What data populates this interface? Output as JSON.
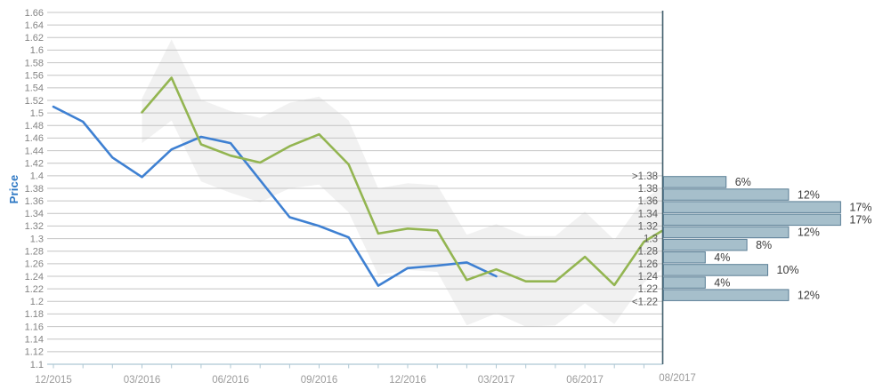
{
  "chart_data": {
    "type": "line",
    "title": "",
    "ylabel": "Price",
    "grid": true,
    "y_axis": {
      "min": 1.1,
      "max": 1.66,
      "step": 0.02
    },
    "x_axis": {
      "unit": "month",
      "tick_labels": [
        {
          "label": "12/2015",
          "month_index": 0
        },
        {
          "label": "03/2016",
          "month_index": 3
        },
        {
          "label": "06/2016",
          "month_index": 6
        },
        {
          "label": "09/2016",
          "month_index": 9
        },
        {
          "label": "12/2016",
          "month_index": 12
        },
        {
          "label": "03/2017",
          "month_index": 15
        },
        {
          "label": "06/2017",
          "month_index": 18
        }
      ],
      "forecast_end_label": "08/2017",
      "minor_tick_count": 21
    },
    "series": [
      {
        "name": "historical-price",
        "color": "#3e80d2",
        "points": [
          [
            0,
            1.51
          ],
          [
            1,
            1.486
          ],
          [
            2,
            1.429
          ],
          [
            3,
            1.398
          ],
          [
            4,
            1.442
          ],
          [
            5,
            1.462
          ],
          [
            6,
            1.452
          ],
          [
            7,
            1.393
          ],
          [
            8,
            1.334
          ],
          [
            9,
            1.32
          ],
          [
            10,
            1.302
          ],
          [
            11,
            1.225
          ],
          [
            12,
            1.253
          ],
          [
            13,
            1.257
          ],
          [
            14,
            1.262
          ],
          [
            15,
            1.24
          ]
        ]
      },
      {
        "name": "forecast-price",
        "color": "#93b551",
        "points": [
          [
            3,
            1.501
          ],
          [
            4,
            1.556
          ],
          [
            5,
            1.45
          ],
          [
            6,
            1.432
          ],
          [
            7,
            1.421
          ],
          [
            8,
            1.447
          ],
          [
            9,
            1.466
          ],
          [
            10,
            1.418
          ],
          [
            11,
            1.308
          ],
          [
            12,
            1.316
          ],
          [
            13,
            1.313
          ],
          [
            14,
            1.234
          ],
          [
            15,
            1.251
          ],
          [
            16,
            1.232
          ],
          [
            17,
            1.232
          ],
          [
            18,
            1.271
          ],
          [
            19,
            1.226
          ],
          [
            20,
            1.295
          ],
          [
            20.6,
            1.312
          ]
        ]
      }
    ],
    "confidence_band": {
      "color": "#f1f1f1",
      "points": [
        [
          3,
          1.523,
          1.452
        ],
        [
          4,
          1.617,
          1.488
        ],
        [
          5,
          1.521,
          1.391
        ],
        [
          6,
          1.503,
          1.373
        ],
        [
          7,
          1.492,
          1.358
        ],
        [
          8,
          1.516,
          1.38
        ],
        [
          9,
          1.526,
          1.386
        ],
        [
          10,
          1.488,
          1.342
        ],
        [
          11,
          1.38,
          1.242
        ],
        [
          12,
          1.388,
          1.25
        ],
        [
          13,
          1.385,
          1.247
        ],
        [
          14,
          1.306,
          1.162
        ],
        [
          15,
          1.323,
          1.181
        ],
        [
          16,
          1.304,
          1.16
        ],
        [
          17,
          1.304,
          1.162
        ],
        [
          18,
          1.343,
          1.197
        ],
        [
          19,
          1.298,
          1.164
        ],
        [
          20,
          1.363,
          1.23
        ],
        [
          20.6,
          1.381,
          1.251
        ]
      ]
    },
    "histogram": {
      "orientation": "horizontal",
      "bin_labels": [
        ">1.38",
        "1.38",
        "1.36",
        "1.34",
        "1.32",
        "1.3",
        "1.28",
        "1.26",
        "1.24",
        "1.22",
        "<1.22"
      ],
      "bars": [
        {
          "bin": ">1.38",
          "pct": 6
        },
        {
          "bin": "1.38",
          "pct": 12
        },
        {
          "bin": "1.36",
          "pct": 17
        },
        {
          "bin": "1.34",
          "pct": 17
        },
        {
          "bin": "1.32",
          "pct": 12
        },
        {
          "bin": "1.3",
          "pct": 8
        },
        {
          "bin": "1.28",
          "pct": 4
        },
        {
          "bin": "1.26",
          "pct": 10
        },
        {
          "bin": "1.24",
          "pct": 4
        },
        {
          "bin": "1.22",
          "pct": 12
        }
      ],
      "pct_suffix": "%"
    },
    "colors": {
      "gridline": "#c4c4c4",
      "axis_line": "#aec7d3",
      "y_tick_text": "#848484",
      "x_tick_text": "#9b9b9b",
      "bin_label_text": "#5a5a5a",
      "pct_label_text": "#3a3a3a",
      "ylabel_text": "#2e78c4",
      "hist_axis": "#3f5d6b",
      "bar_fill": "#a6bfcb",
      "bar_stroke": "#5a7e95"
    }
  }
}
